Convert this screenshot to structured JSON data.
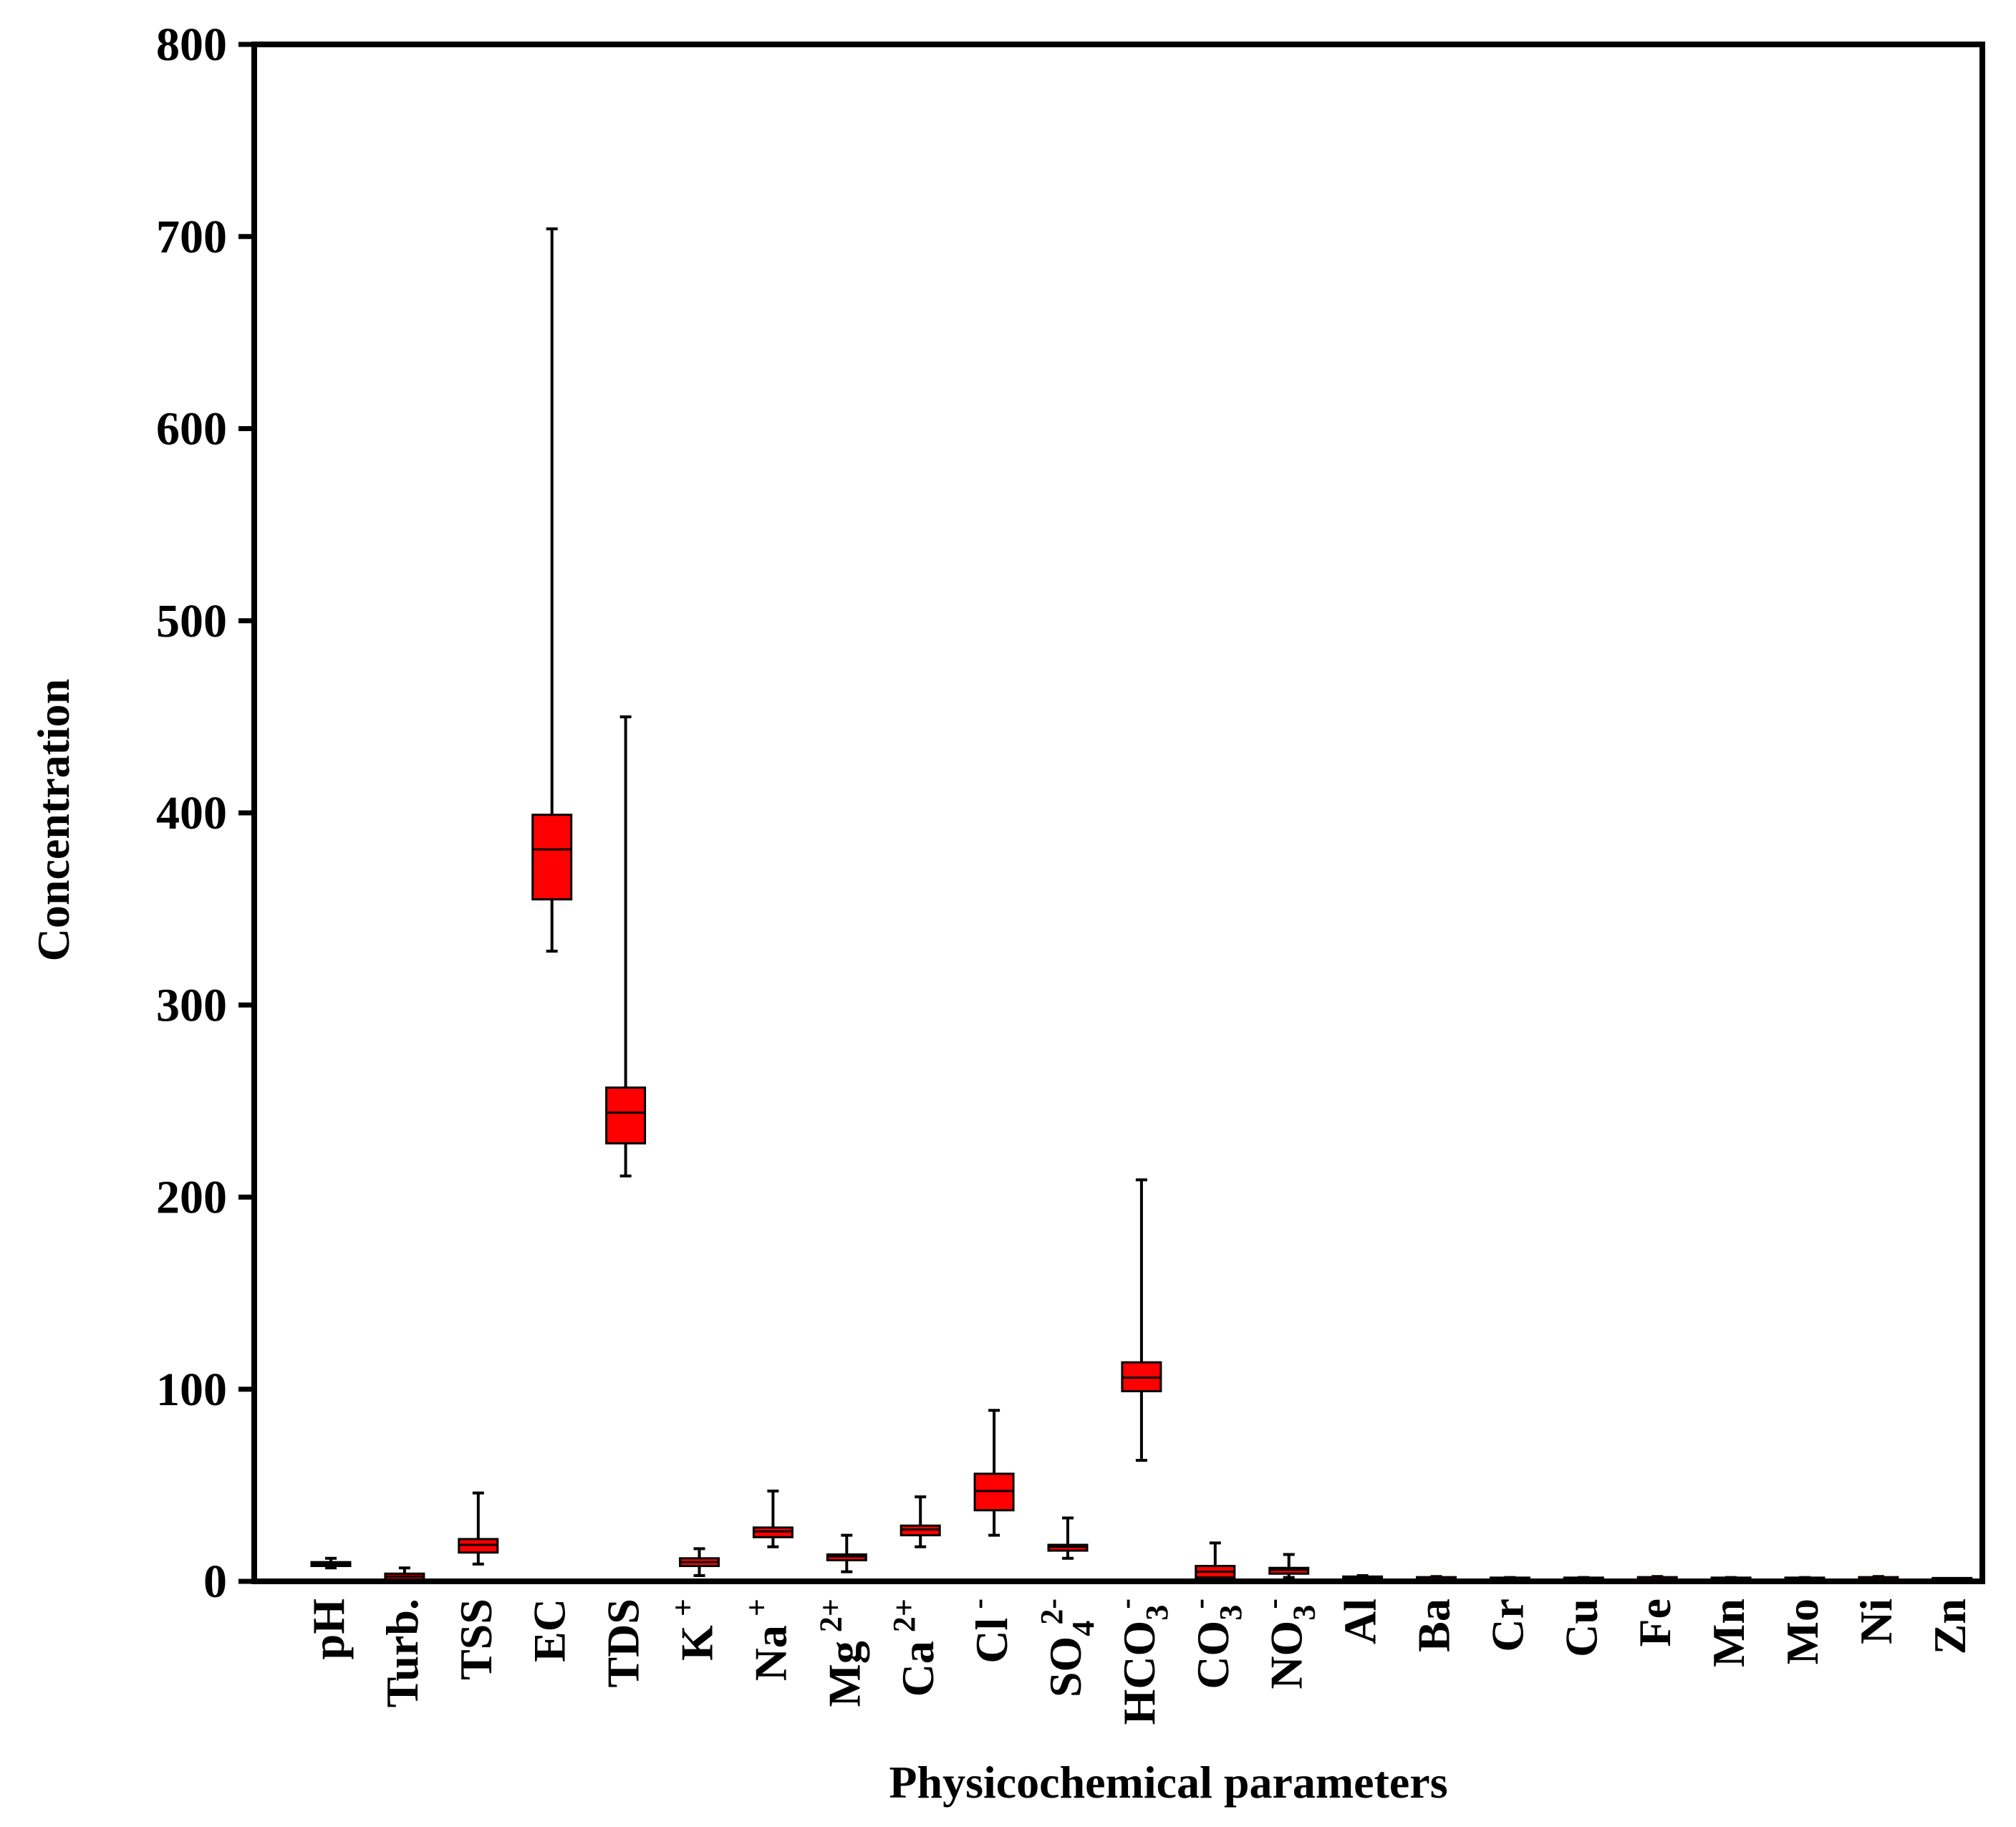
{
  "chart_data": {
    "type": "boxplot",
    "xlabel": "Physicochemical parameters",
    "ylabel": "Concentration",
    "ylim": [
      0,
      800
    ],
    "yticks": [
      0,
      100,
      200,
      300,
      400,
      500,
      600,
      700,
      800
    ],
    "grid": false,
    "box_color": "#ff0000",
    "line_color": "#000000",
    "categories": [
      {
        "label": "pH",
        "sup": "",
        "sub": ""
      },
      {
        "label": "Turb.",
        "sup": "",
        "sub": ""
      },
      {
        "label": "TSS",
        "sup": "",
        "sub": ""
      },
      {
        "label": "EC",
        "sup": "",
        "sub": ""
      },
      {
        "label": "TDS",
        "sup": "",
        "sub": ""
      },
      {
        "label": "K",
        "sup": "+",
        "sub": ""
      },
      {
        "label": "Na",
        "sup": "+",
        "sub": ""
      },
      {
        "label": "Mg",
        "sup": "2+",
        "sub": ""
      },
      {
        "label": "Ca",
        "sup": "2+",
        "sub": ""
      },
      {
        "label": "Cl",
        "sup": "-",
        "sub": ""
      },
      {
        "label": "SO",
        "sup": "2-",
        "sub": "4"
      },
      {
        "label": "HCO",
        "sup": "-",
        "sub": "3"
      },
      {
        "label": "CO",
        "sup": "-",
        "sub": "3"
      },
      {
        "label": "NO",
        "sup": "-",
        "sub": "3"
      },
      {
        "label": "Al",
        "sup": "",
        "sub": ""
      },
      {
        "label": "Ba",
        "sup": "",
        "sub": ""
      },
      {
        "label": "Cr",
        "sup": "",
        "sub": ""
      },
      {
        "label": "Cu",
        "sup": "",
        "sub": ""
      },
      {
        "label": "Fe",
        "sup": "",
        "sub": ""
      },
      {
        "label": "Mn",
        "sup": "",
        "sub": ""
      },
      {
        "label": "Mo",
        "sup": "",
        "sub": ""
      },
      {
        "label": "Ni",
        "sup": "",
        "sub": ""
      },
      {
        "label": "Zn",
        "sup": "",
        "sub": ""
      }
    ],
    "boxes": [
      {
        "min": 7,
        "q1": 8,
        "median": 9,
        "q3": 10,
        "max": 12
      },
      {
        "min": 0.5,
        "q1": 1,
        "median": 2.5,
        "q3": 4,
        "max": 7
      },
      {
        "min": 9,
        "q1": 15,
        "median": 19,
        "q3": 22,
        "max": 46
      },
      {
        "min": 328,
        "q1": 355,
        "median": 381,
        "q3": 399,
        "max": 704
      },
      {
        "min": 211,
        "q1": 228,
        "median": 244,
        "q3": 257,
        "max": 450
      },
      {
        "min": 3,
        "q1": 8,
        "median": 10,
        "q3": 12,
        "max": 17
      },
      {
        "min": 18,
        "q1": 23,
        "median": 26,
        "q3": 28,
        "max": 47
      },
      {
        "min": 5,
        "q1": 11,
        "median": 13,
        "q3": 14,
        "max": 24
      },
      {
        "min": 18,
        "q1": 24,
        "median": 27,
        "q3": 29,
        "max": 44
      },
      {
        "min": 24,
        "q1": 37,
        "median": 47,
        "q3": 56,
        "max": 89
      },
      {
        "min": 12,
        "q1": 16,
        "median": 18,
        "q3": 19,
        "max": 33
      },
      {
        "min": 63,
        "q1": 99,
        "median": 106,
        "q3": 114,
        "max": 209
      },
      {
        "min": 0,
        "q1": 2,
        "median": 5,
        "q3": 8,
        "max": 20
      },
      {
        "min": 2,
        "q1": 4,
        "median": 6,
        "q3": 7,
        "max": 14
      },
      {
        "min": 0,
        "q1": 0.5,
        "median": 1.5,
        "q3": 2.5,
        "max": 3
      },
      {
        "min": 0,
        "q1": 0.5,
        "median": 1,
        "q3": 2,
        "max": 2.5
      },
      {
        "min": 0,
        "q1": 0.5,
        "median": 1,
        "q3": 1.5,
        "max": 2
      },
      {
        "min": 0,
        "q1": 0.5,
        "median": 1,
        "q3": 1.5,
        "max": 2
      },
      {
        "min": 0,
        "q1": 0.5,
        "median": 1,
        "q3": 2,
        "max": 2.5
      },
      {
        "min": 0,
        "q1": 0.5,
        "median": 1,
        "q3": 1.5,
        "max": 2
      },
      {
        "min": 0,
        "q1": 0.5,
        "median": 1,
        "q3": 1.5,
        "max": 2
      },
      {
        "min": 0,
        "q1": 0.5,
        "median": 1,
        "q3": 2,
        "max": 2.5
      },
      {
        "min": 0,
        "q1": 0.3,
        "median": 0.8,
        "q3": 1.3,
        "max": 1.5
      }
    ]
  }
}
